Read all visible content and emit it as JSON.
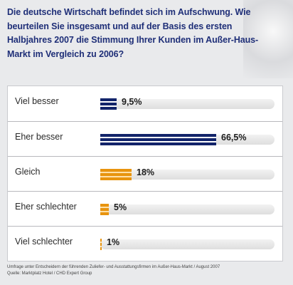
{
  "question": "Die deutsche Wirtschaft befindet sich im Aufschwung. Wie beurteilen Sie insgesamt und auf der Basis des ersten Halbjahres 2007 die Stimmung Ihrer Kunden im Außer-Haus-Markt im Vergleich zu 2006?",
  "footer": {
    "line1": "Umfrage unter Entscheidern der führenden Zuliefer- und Ausstattungsfirmen im Außer-Haus-Markt / August 2007",
    "line2": "Quelle: Marktplatz Hotel / CHD Expert Group"
  },
  "colors": {
    "blue": "#12246a",
    "orange": "#e8940f",
    "title": "#1f2f78"
  },
  "chart_data": {
    "type": "bar",
    "orientation": "horizontal",
    "xlim": [
      0,
      100
    ],
    "categories": [
      "Viel besser",
      "Eher besser",
      "Gleich",
      "Eher schlechter",
      "Viel schlechter"
    ],
    "values": [
      9.5,
      66.5,
      18,
      5,
      1
    ],
    "value_labels": [
      "9,5%",
      "66,5%",
      "18%",
      "5%",
      "1%"
    ],
    "bar_colors": [
      "blue",
      "blue",
      "orange",
      "orange",
      "orange"
    ]
  }
}
